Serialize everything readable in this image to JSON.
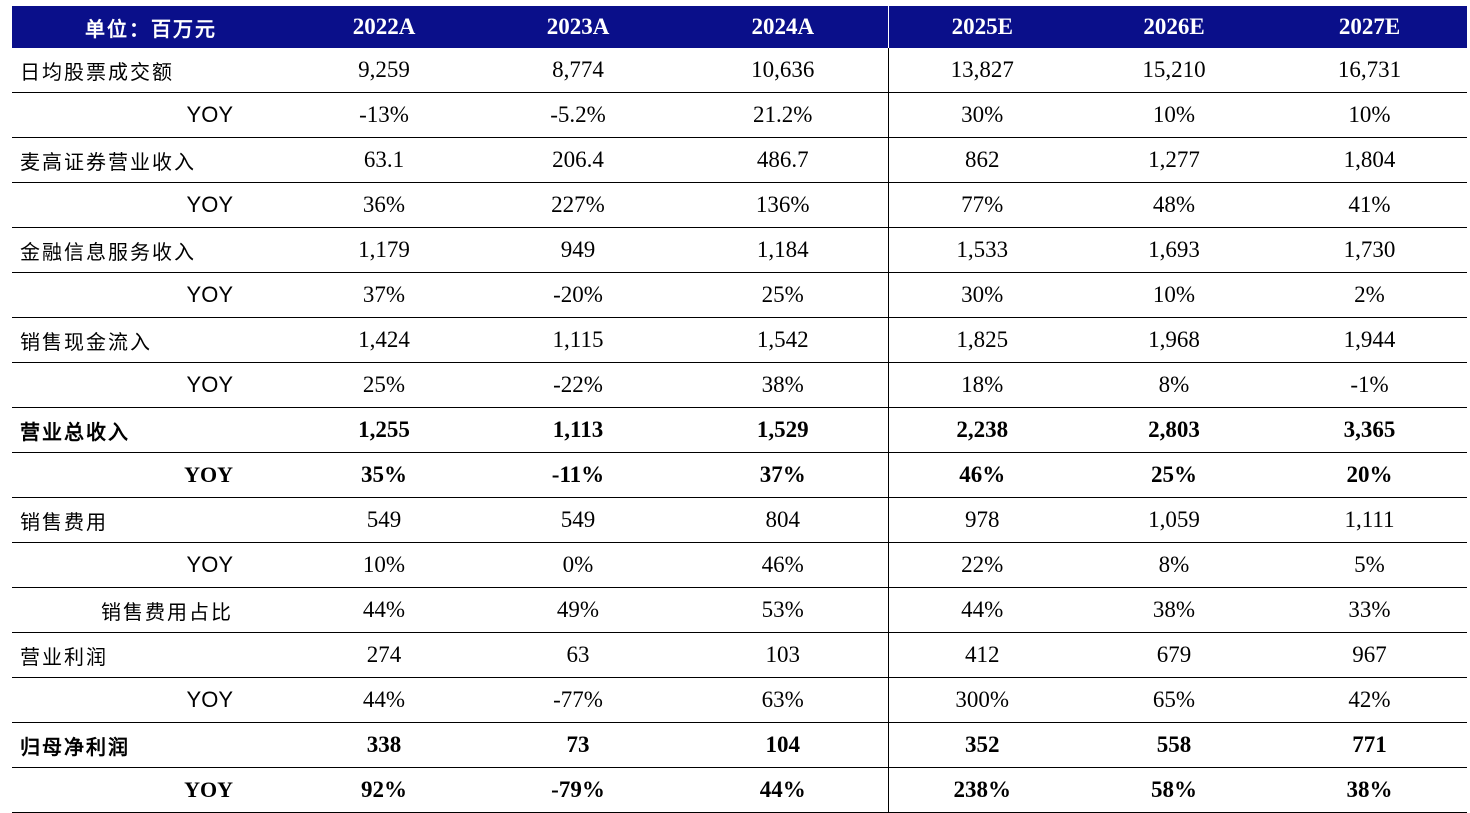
{
  "header": {
    "unit_label": "单位：百万元",
    "years": [
      "2022A",
      "2023A",
      "2024A",
      "2025E",
      "2026E",
      "2027E"
    ]
  },
  "rows": [
    {
      "label": "日均股票成交额",
      "type": "main",
      "values": [
        "9,259",
        "8,774",
        "10,636",
        "13,827",
        "15,210",
        "16,731"
      ]
    },
    {
      "label": "YOY",
      "type": "yoy",
      "values": [
        "-13%",
        "-5.2%",
        "21.2%",
        "30%",
        "10%",
        "10%"
      ]
    },
    {
      "label": "麦高证券营业收入",
      "type": "main",
      "values": [
        "63.1",
        "206.4",
        "486.7",
        "862",
        "1,277",
        "1,804"
      ]
    },
    {
      "label": "YOY",
      "type": "yoy",
      "values": [
        "36%",
        "227%",
        "136%",
        "77%",
        "48%",
        "41%"
      ]
    },
    {
      "label": "金融信息服务收入",
      "type": "main",
      "values": [
        "1,179",
        "949",
        "1,184",
        "1,533",
        "1,693",
        "1,730"
      ]
    },
    {
      "label": "YOY",
      "type": "yoy",
      "values": [
        "37%",
        "-20%",
        "25%",
        "30%",
        "10%",
        "2%"
      ]
    },
    {
      "label": "销售现金流入",
      "type": "main",
      "values": [
        "1,424",
        "1,115",
        "1,542",
        "1,825",
        "1,968",
        "1,944"
      ]
    },
    {
      "label": "YOY",
      "type": "yoy",
      "values": [
        "25%",
        "-22%",
        "38%",
        "18%",
        "8%",
        "-1%"
      ]
    },
    {
      "label": "营业总收入",
      "type": "main",
      "bold": true,
      "values": [
        "1,255",
        "1,113",
        "1,529",
        "2,238",
        "2,803",
        "3,365"
      ]
    },
    {
      "label": "YOY",
      "type": "yoy",
      "bold": true,
      "values": [
        "35%",
        "-11%",
        "37%",
        "46%",
        "25%",
        "20%"
      ]
    },
    {
      "label": "销售费用",
      "type": "main",
      "values": [
        "549",
        "549",
        "804",
        "978",
        "1,059",
        "1,111"
      ]
    },
    {
      "label": "YOY",
      "type": "yoy",
      "values": [
        "10%",
        "0%",
        "46%",
        "22%",
        "8%",
        "5%"
      ]
    },
    {
      "label": "销售费用占比",
      "type": "sub",
      "values": [
        "44%",
        "49%",
        "53%",
        "44%",
        "38%",
        "33%"
      ]
    },
    {
      "label": "营业利润",
      "type": "main",
      "values": [
        "274",
        "63",
        "103",
        "412",
        "679",
        "967"
      ]
    },
    {
      "label": "YOY",
      "type": "yoy",
      "values": [
        "44%",
        "-77%",
        "63%",
        "300%",
        "65%",
        "42%"
      ]
    },
    {
      "label": "归母净利润",
      "type": "main",
      "bold": true,
      "values": [
        "338",
        "73",
        "104",
        "352",
        "558",
        "771"
      ]
    },
    {
      "label": "YOY",
      "type": "yoy",
      "bold": true,
      "values": [
        "92%",
        "-79%",
        "44%",
        "238%",
        "58%",
        "38%"
      ]
    }
  ],
  "colors": {
    "header_bg": "#0a0f8a",
    "header_text": "#ffffff"
  }
}
